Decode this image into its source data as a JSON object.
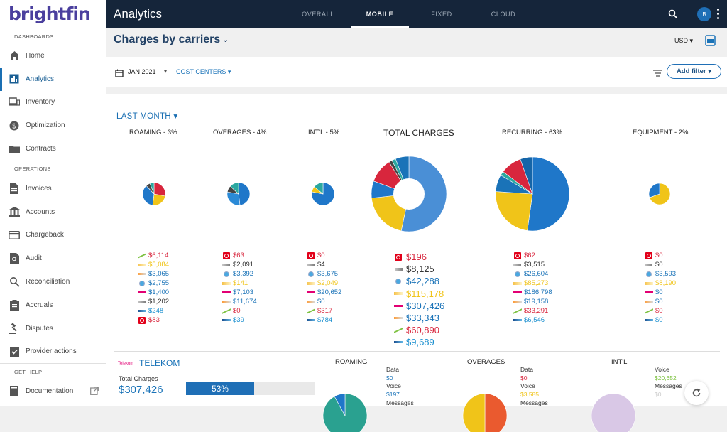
{
  "brand": "brightfin",
  "sidebar": {
    "sections": [
      {
        "title": "DASHBOARDS",
        "items": [
          {
            "label": "Home",
            "icon": "home-icon"
          },
          {
            "label": "Analytics",
            "icon": "bar-chart-icon",
            "active": true
          },
          {
            "label": "Inventory",
            "icon": "devices-icon"
          },
          {
            "label": "Optimization",
            "icon": "dollar-icon"
          },
          {
            "label": "Contracts",
            "icon": "folder-icon"
          }
        ]
      },
      {
        "title": "OPERATIONS",
        "items": [
          {
            "label": "Invoices",
            "icon": "document-icon"
          },
          {
            "label": "Accounts",
            "icon": "bank-icon"
          },
          {
            "label": "Chargeback",
            "icon": "credit-card-icon"
          },
          {
            "label": "Audit",
            "icon": "audit-icon"
          },
          {
            "label": "Reconciliation",
            "icon": "reconcile-icon"
          },
          {
            "label": "Accruals",
            "icon": "clipboard-icon"
          },
          {
            "label": "Disputes",
            "icon": "gavel-icon"
          },
          {
            "label": "Provider actions",
            "icon": "checklist-icon"
          }
        ]
      },
      {
        "title": "GET HELP",
        "items": [
          {
            "label": "Documentation",
            "icon": "book-icon"
          }
        ]
      }
    ]
  },
  "topbar": {
    "title": "Analytics",
    "tabs": [
      "OVERALL",
      "MOBILE",
      "FIXED",
      "CLOUD"
    ],
    "active_tab": "MOBILE",
    "avatar": "B"
  },
  "header": {
    "title": "Charges by carriers",
    "currency": "USD"
  },
  "filters": {
    "date": "JAN 2021",
    "cost_centers": "COST CENTERS",
    "add_filter": "Add filter"
  },
  "period": "LAST MONTH",
  "colors": {
    "vodafone": "#e2001a",
    "usc": "#4a4a4a",
    "att": "#1a8fcf",
    "sprint": "#f0c419",
    "telekom": "#e20074",
    "uscellular": "#444444",
    "sk": "#d8263d",
    "gi": "#23a7bd"
  },
  "carriers": [
    "vodafone",
    "uscellular",
    "att",
    "sprint",
    "telekom",
    "uscellular2",
    "sk",
    "gigsky"
  ],
  "pies": [
    {
      "title": "ROAMING - 3%",
      "values": [
        {
          "text": "$6,114",
          "color": "#d8263d",
          "logo": "lsk"
        },
        {
          "text": "$5,084",
          "color": "#f0c419",
          "logo": "lsp"
        },
        {
          "text": "$3,065",
          "color": "#1a73b8",
          "logo": "la"
        },
        {
          "text": "$2,755",
          "color": "#1a73b8",
          "logo": "lat"
        },
        {
          "text": "$1,400",
          "color": "#1a73b8",
          "logo": "lt"
        },
        {
          "text": "$1,202",
          "color": "#333333",
          "logo": "lus"
        },
        {
          "text": "$248",
          "color": "#1a8fcf",
          "logo": "lgi"
        },
        {
          "text": "$83",
          "color": "#d8263d",
          "logo": "lv"
        }
      ]
    },
    {
      "title": "OVERAGES - 4%",
      "values": [
        {
          "text": "$63",
          "color": "#d8263d",
          "logo": "lv"
        },
        {
          "text": "$2,091",
          "color": "#333333",
          "logo": "lus"
        },
        {
          "text": "$3,392",
          "color": "#1a73b8",
          "logo": "lat"
        },
        {
          "text": "$141",
          "color": "#f0c419",
          "logo": "lsp"
        },
        {
          "text": "$7,103",
          "color": "#1a73b8",
          "logo": "lt"
        },
        {
          "text": "$11,674",
          "color": "#1a73b8",
          "logo": "la"
        },
        {
          "text": "$0",
          "color": "#d8263d",
          "logo": "lsk"
        },
        {
          "text": "$39",
          "color": "#1a8fcf",
          "logo": "lgi"
        }
      ]
    },
    {
      "title": "INT'L - 5%",
      "values": [
        {
          "text": "$0",
          "color": "#d8263d",
          "logo": "lv"
        },
        {
          "text": "$4",
          "color": "#333333",
          "logo": "lus"
        },
        {
          "text": "$3,675",
          "color": "#1a73b8",
          "logo": "lat"
        },
        {
          "text": "$2,049",
          "color": "#f0c419",
          "logo": "lsp"
        },
        {
          "text": "$20,652",
          "color": "#1a73b8",
          "logo": "lt"
        },
        {
          "text": "$0",
          "color": "#1a73b8",
          "logo": "la"
        },
        {
          "text": "$317",
          "color": "#d8263d",
          "logo": "lsk"
        },
        {
          "text": "$784",
          "color": "#1a8fcf",
          "logo": "lgi"
        }
      ]
    },
    {
      "title": "TOTAL CHARGES",
      "values": [
        {
          "text": "$196",
          "color": "#d8263d",
          "logo": "lv"
        },
        {
          "text": "$8,125",
          "color": "#333333",
          "logo": "lus"
        },
        {
          "text": "$42,288",
          "color": "#1a73b8",
          "logo": "lat"
        },
        {
          "text": "$115,178",
          "color": "#f0c419",
          "logo": "lsp"
        },
        {
          "text": "$307,426",
          "color": "#1a73b8",
          "logo": "lt"
        },
        {
          "text": "$33,343",
          "color": "#1a73b8",
          "logo": "la"
        },
        {
          "text": "$60,890",
          "color": "#d8263d",
          "logo": "lsk"
        },
        {
          "text": "$9,689",
          "color": "#1a8fcf",
          "logo": "lgi"
        }
      ]
    },
    {
      "title": "RECURRING - 63%",
      "values": [
        {
          "text": "$62",
          "color": "#d8263d",
          "logo": "lv"
        },
        {
          "text": "$3,515",
          "color": "#333333",
          "logo": "lus"
        },
        {
          "text": "$26,604",
          "color": "#1a73b8",
          "logo": "lat"
        },
        {
          "text": "$85,273",
          "color": "#f0c419",
          "logo": "lsp"
        },
        {
          "text": "$186,798",
          "color": "#1a73b8",
          "logo": "lt"
        },
        {
          "text": "$19,158",
          "color": "#1a73b8",
          "logo": "la"
        },
        {
          "text": "$33,291",
          "color": "#d8263d",
          "logo": "lsk"
        },
        {
          "text": "$6,546",
          "color": "#1a8fcf",
          "logo": "lgi"
        }
      ]
    },
    {
      "title": "EQUIPMENT - 2%",
      "values": [
        {
          "text": "$0",
          "color": "#d8263d",
          "logo": "lv"
        },
        {
          "text": "$0",
          "color": "#333333",
          "logo": "lus"
        },
        {
          "text": "$3,593",
          "color": "#1a73b8",
          "logo": "lat"
        },
        {
          "text": "$8,190",
          "color": "#f0c419",
          "logo": "lsp"
        },
        {
          "text": "$0",
          "color": "#1a73b8",
          "logo": "lt"
        },
        {
          "text": "$0",
          "color": "#1a73b8",
          "logo": "la"
        },
        {
          "text": "$0",
          "color": "#d8263d",
          "logo": "lsk"
        },
        {
          "text": "$0",
          "color": "#1a8fcf",
          "logo": "lgi"
        }
      ]
    }
  ],
  "chart_data": [
    {
      "type": "pie",
      "title": "ROAMING - 3%",
      "series": [
        {
          "label": "red",
          "value": 28,
          "color": "#d8263d"
        },
        {
          "label": "yellow",
          "value": 24,
          "color": "#f0c419"
        },
        {
          "label": "blue",
          "value": 36,
          "color": "#1f77c9"
        },
        {
          "label": "dark",
          "value": 6,
          "color": "#444444"
        },
        {
          "label": "teal",
          "value": 6,
          "color": "#2aa8a0"
        }
      ]
    },
    {
      "type": "pie",
      "title": "OVERAGES - 4%",
      "series": [
        {
          "label": "blue",
          "value": 48,
          "color": "#1f77c9"
        },
        {
          "label": "blue2",
          "value": 30,
          "color": "#2b8ad6"
        },
        {
          "label": "dark",
          "value": 9,
          "color": "#444444"
        },
        {
          "label": "teal",
          "value": 13,
          "color": "#2aa8a0"
        }
      ]
    },
    {
      "type": "pie",
      "title": "INT'L - 5%",
      "series": [
        {
          "label": "blue",
          "value": 78,
          "color": "#1f77c9"
        },
        {
          "label": "yellow",
          "value": 8,
          "color": "#f0c419"
        },
        {
          "label": "teal",
          "value": 14,
          "color": "#2aa8a0"
        }
      ]
    },
    {
      "type": "pie",
      "title": "TOTAL CHARGES",
      "donut": true,
      "series": [
        {
          "label": "telekom",
          "value": 307426,
          "color": "#4a8fd6"
        },
        {
          "label": "sprint",
          "value": 115178,
          "color": "#f0c419"
        },
        {
          "label": "att",
          "value": 42288,
          "color": "#1f77c9"
        },
        {
          "label": "sk",
          "value": 60890,
          "color": "#d8263d"
        },
        {
          "label": "uscellular",
          "value": 8125,
          "color": "#444444"
        },
        {
          "label": "gigsky",
          "value": 9689,
          "color": "#2aa8a0"
        },
        {
          "label": "misc",
          "value": 33343,
          "color": "#1a73b8"
        }
      ]
    },
    {
      "type": "pie",
      "title": "RECURRING - 63%",
      "series": [
        {
          "label": "telekom",
          "value": 186798,
          "color": "#1f77c9"
        },
        {
          "label": "sprint",
          "value": 85273,
          "color": "#f0c419"
        },
        {
          "label": "att",
          "value": 26604,
          "color": "#1a73b8"
        },
        {
          "label": "gigsky",
          "value": 6546,
          "color": "#2aa8a0"
        },
        {
          "label": "sk",
          "value": 33291,
          "color": "#d8263d"
        },
        {
          "label": "misc",
          "value": 19158,
          "color": "#1565a8"
        }
      ]
    },
    {
      "type": "pie",
      "title": "EQUIPMENT - 2%",
      "series": [
        {
          "label": "sprint",
          "value": 8190,
          "color": "#f0c419"
        },
        {
          "label": "att",
          "value": 3593,
          "color": "#1f77c9"
        }
      ]
    }
  ],
  "bottom": {
    "carrier_logo": "Telekom",
    "carrier": "TELEKOM",
    "total_label": "Total Charges",
    "total_value": "$307,426",
    "percent": "53%",
    "percent_fraction": 0.53,
    "roaming": {
      "title": "ROAMING",
      "lines": [
        {
          "text": "Data",
          "color": "#333333"
        },
        {
          "text": "$0",
          "color": "#1a73b8"
        },
        {
          "text": "Voice",
          "color": "#333333"
        },
        {
          "text": "$197",
          "color": "#1a73b8"
        },
        {
          "text": "Messages",
          "color": "#333333"
        }
      ]
    },
    "overages": {
      "title": "OVERAGES",
      "lines": [
        {
          "text": "Data",
          "color": "#333333"
        },
        {
          "text": "$0",
          "color": "#d8263d"
        },
        {
          "text": "Voice",
          "color": "#333333"
        },
        {
          "text": "$3,585",
          "color": "#f0c419"
        },
        {
          "text": "Messages",
          "color": "#333333"
        }
      ]
    },
    "intl": {
      "title": "INT'L",
      "lines": [
        {
          "text": "Voice",
          "color": "#333333"
        },
        {
          "text": "$20,652",
          "color": "#7ec242"
        },
        {
          "text": "Messages",
          "color": "#333333"
        },
        {
          "text": "$0",
          "color": "#cccccc"
        }
      ]
    }
  },
  "bottom_charts": [
    {
      "type": "pie",
      "title": "ROAMING",
      "series": [
        {
          "label": "teal",
          "value": 92,
          "color": "#2aa190"
        },
        {
          "label": "blue",
          "value": 8,
          "color": "#1f77c9"
        }
      ]
    },
    {
      "type": "pie",
      "title": "OVERAGES",
      "series": [
        {
          "label": "orange",
          "value": 50,
          "color": "#ea5a2f"
        },
        {
          "label": "yellow",
          "value": 50,
          "color": "#f0c419"
        }
      ]
    },
    {
      "type": "pie",
      "title": "INT'L",
      "series": [
        {
          "label": "lavender",
          "value": 100,
          "color": "#d9c8e6"
        }
      ]
    }
  ]
}
